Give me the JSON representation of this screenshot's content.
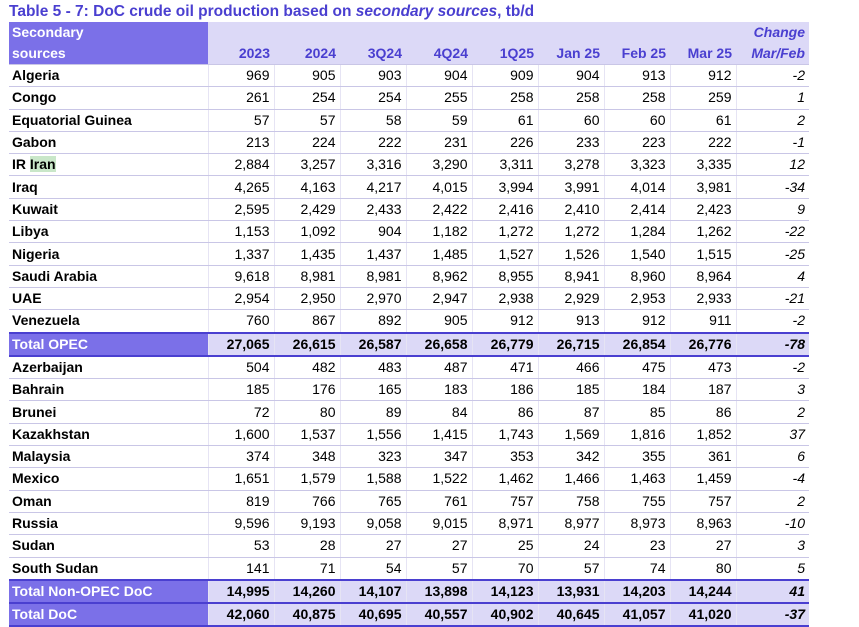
{
  "title": {
    "part1": "Table 5 - 7: DoC crude oil production based on ",
    "part2": "secondary sources",
    "part3": ", tb/d"
  },
  "header": {
    "sources_line1": "Secondary",
    "sources_line2": "sources",
    "change_line1": "Change",
    "columns": [
      "2023",
      "2024",
      "3Q24",
      "4Q24",
      "1Q25",
      "Jan 25",
      "Feb 25",
      "Mar 25",
      "Mar/Feb"
    ]
  },
  "opec": [
    {
      "name": "Algeria",
      "v": [
        "969",
        "905",
        "903",
        "904",
        "909",
        "904",
        "913",
        "912",
        "-2"
      ]
    },
    {
      "name": "Congo",
      "v": [
        "261",
        "254",
        "254",
        "255",
        "258",
        "258",
        "258",
        "259",
        "1"
      ]
    },
    {
      "name": "Equatorial Guinea",
      "v": [
        "57",
        "57",
        "58",
        "59",
        "61",
        "60",
        "60",
        "61",
        "2"
      ]
    },
    {
      "name": "Gabon",
      "v": [
        "213",
        "224",
        "222",
        "231",
        "226",
        "233",
        "223",
        "222",
        "-1"
      ]
    },
    {
      "name_a": "IR ",
      "name_b": "Iran",
      "v": [
        "2,884",
        "3,257",
        "3,316",
        "3,290",
        "3,311",
        "3,278",
        "3,323",
        "3,335",
        "12"
      ]
    },
    {
      "name": "Iraq",
      "v": [
        "4,265",
        "4,163",
        "4,217",
        "4,015",
        "3,994",
        "3,991",
        "4,014",
        "3,981",
        "-34"
      ]
    },
    {
      "name": "Kuwait",
      "v": [
        "2,595",
        "2,429",
        "2,433",
        "2,422",
        "2,416",
        "2,410",
        "2,414",
        "2,423",
        "9"
      ]
    },
    {
      "name": "Libya",
      "v": [
        "1,153",
        "1,092",
        "904",
        "1,182",
        "1,272",
        "1,272",
        "1,284",
        "1,262",
        "-22"
      ]
    },
    {
      "name": "Nigeria",
      "v": [
        "1,337",
        "1,435",
        "1,437",
        "1,485",
        "1,527",
        "1,526",
        "1,540",
        "1,515",
        "-25"
      ]
    },
    {
      "name": "Saudi Arabia",
      "v": [
        "9,618",
        "8,981",
        "8,981",
        "8,962",
        "8,955",
        "8,941",
        "8,960",
        "8,964",
        "4"
      ]
    },
    {
      "name": "UAE",
      "v": [
        "2,954",
        "2,950",
        "2,970",
        "2,947",
        "2,938",
        "2,929",
        "2,953",
        "2,933",
        "-21"
      ]
    },
    {
      "name": "Venezuela",
      "v": [
        "760",
        "867",
        "892",
        "905",
        "912",
        "913",
        "912",
        "911",
        "-2"
      ]
    }
  ],
  "total_opec": {
    "name": "Total  OPEC",
    "v": [
      "27,065",
      "26,615",
      "26,587",
      "26,658",
      "26,779",
      "26,715",
      "26,854",
      "26,776",
      "-78"
    ]
  },
  "non_opec": [
    {
      "name": "Azerbaijan",
      "v": [
        "504",
        "482",
        "483",
        "487",
        "471",
        "466",
        "475",
        "473",
        "-2"
      ]
    },
    {
      "name": "Bahrain",
      "v": [
        "185",
        "176",
        "165",
        "183",
        "186",
        "185",
        "184",
        "187",
        "3"
      ]
    },
    {
      "name": "Brunei",
      "v": [
        "72",
        "80",
        "89",
        "84",
        "86",
        "87",
        "85",
        "86",
        "2"
      ]
    },
    {
      "name": "Kazakhstan",
      "v": [
        "1,600",
        "1,537",
        "1,556",
        "1,415",
        "1,743",
        "1,569",
        "1,816",
        "1,852",
        "37"
      ]
    },
    {
      "name": "Malaysia",
      "v": [
        "374",
        "348",
        "323",
        "347",
        "353",
        "342",
        "355",
        "361",
        "6"
      ]
    },
    {
      "name": "Mexico",
      "v": [
        "1,651",
        "1,579",
        "1,588",
        "1,522",
        "1,462",
        "1,466",
        "1,463",
        "1,459",
        "-4"
      ]
    },
    {
      "name": "Oman",
      "v": [
        "819",
        "766",
        "765",
        "761",
        "757",
        "758",
        "755",
        "757",
        "2"
      ]
    },
    {
      "name": "Russia",
      "v": [
        "9,596",
        "9,193",
        "9,058",
        "9,015",
        "8,971",
        "8,977",
        "8,973",
        "8,963",
        "-10"
      ]
    },
    {
      "name": "Sudan",
      "v": [
        "53",
        "28",
        "27",
        "27",
        "25",
        "24",
        "23",
        "27",
        "3"
      ]
    },
    {
      "name": "South Sudan",
      "v": [
        "141",
        "71",
        "54",
        "57",
        "70",
        "57",
        "74",
        "80",
        "5"
      ]
    }
  ],
  "total_non_opec": {
    "name": "Total Non-OPEC DoC",
    "v": [
      "14,995",
      "14,260",
      "14,107",
      "13,898",
      "14,123",
      "13,931",
      "14,203",
      "14,244",
      "41"
    ]
  },
  "total_doc": {
    "name": "Total DoC",
    "v": [
      "42,060",
      "40,875",
      "40,695",
      "40,557",
      "40,902",
      "40,645",
      "41,057",
      "41,020",
      "-37"
    ]
  }
}
